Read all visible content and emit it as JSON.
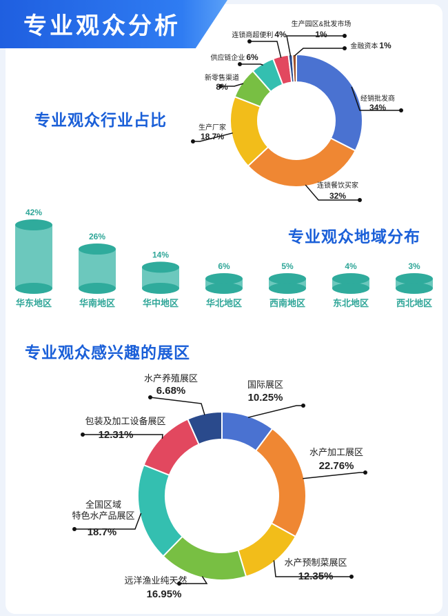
{
  "header": {
    "title": "专业观众分析"
  },
  "sections": {
    "industry_title": "专业观众行业占比",
    "region_title": "专业观众地域分布",
    "interest_title": "专业观众感兴趣的展区"
  },
  "chart_data": [
    {
      "type": "pie",
      "title": "专业观众行业占比",
      "slices": [
        {
          "label": "经销批发商",
          "value": 34,
          "value_label": "34%",
          "color": "#4a72d1"
        },
        {
          "label": "连锁餐饮买家",
          "value": 32,
          "value_label": "32%",
          "color": "#ef8733"
        },
        {
          "label": "生产厂家",
          "value": 18.7,
          "value_label": "18.7%",
          "color": "#f2bd1a"
        },
        {
          "label": "新零售渠道",
          "value": 8,
          "value_label": "8%",
          "color": "#78bf43"
        },
        {
          "label": "供应链企业",
          "value": 6,
          "value_label": "6%",
          "color": "#34bfb0"
        },
        {
          "label": "连锁商超便利",
          "value": 4,
          "value_label": "4%",
          "color": "#e2485f"
        },
        {
          "label": "生产园区&批发市场",
          "value": 1,
          "value_label": "1%",
          "color": "#2a4a8c"
        },
        {
          "label": "金融资本",
          "value": 1,
          "value_label": "1%",
          "color": "#a0522d"
        }
      ]
    },
    {
      "type": "bar",
      "title": "专业观众地域分布",
      "categories": [
        "华东地区",
        "华南地区",
        "华中地区",
        "华北地区",
        "西南地区",
        "东北地区",
        "西北地区"
      ],
      "values": [
        42,
        26,
        14,
        6,
        5,
        4,
        3
      ],
      "value_labels": [
        "42%",
        "26%",
        "14%",
        "6%",
        "5%",
        "4%",
        "3%"
      ],
      "color": "#5ec4b8"
    },
    {
      "type": "pie",
      "title": "专业观众感兴趣的展区",
      "slices": [
        {
          "label": "国际展区",
          "value": 10.25,
          "value_label": "10.25%",
          "color": "#4a72d1"
        },
        {
          "label": "水产加工展区",
          "value": 22.76,
          "value_label": "22.76%",
          "color": "#ef8733"
        },
        {
          "label": "水产预制菜展区",
          "value": 12.35,
          "value_label": "12.35%",
          "color": "#f2bd1a"
        },
        {
          "label": "远洋渔业纯天然产品展区",
          "value": 16.95,
          "value_label": "16.95%",
          "color": "#78bf43"
        },
        {
          "label": "全国区域特色水产品展区",
          "value": 18.7,
          "value_label": "18.7%",
          "color": "#34bfb0"
        },
        {
          "label": "包装及加工设备展区",
          "value": 12.31,
          "value_label": "12.31%",
          "color": "#e2485f"
        },
        {
          "label": "水产养殖展区",
          "value": 6.68,
          "value_label": "6.68%",
          "color": "#2a4a8c"
        }
      ]
    }
  ]
}
